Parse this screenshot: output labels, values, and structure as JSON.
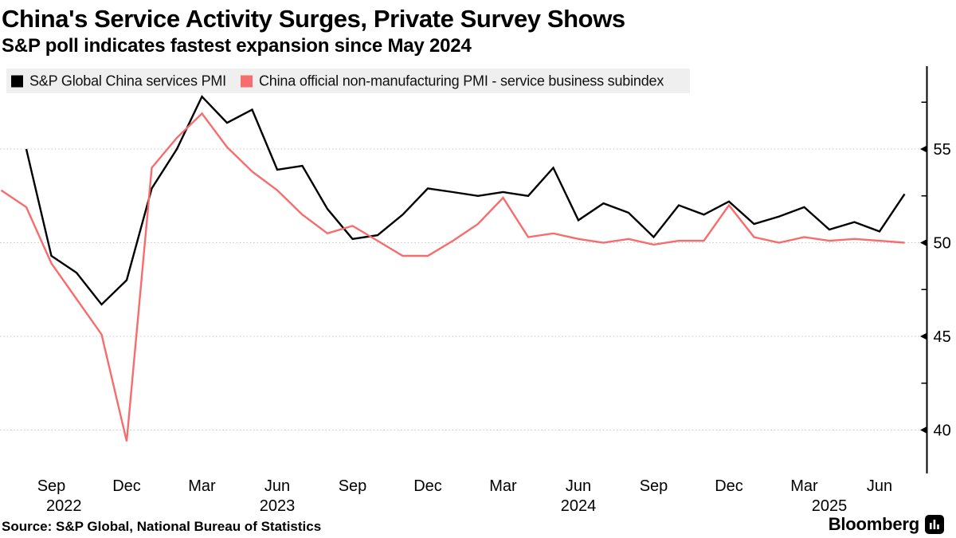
{
  "header": {
    "title": "China's Service Activity Surges, Private Survey Shows",
    "subtitle": "S&P poll indicates fastest expansion since May 2024"
  },
  "legend": [
    {
      "label": "S&P Global China services PMI",
      "color": "#000000"
    },
    {
      "label": "China official non-manufacturing PMI - service business subindex",
      "color": "#f76c6c"
    }
  ],
  "footer": {
    "source": "Source: S&P Global, National Bureau of Statistics",
    "brand": "Bloomberg",
    "brand_icon": "bar-chart-badge"
  },
  "chart_data": {
    "type": "line",
    "title": "China's Service Activity Surges, Private Survey Shows",
    "subtitle": "S&P poll indicates fastest expansion since May 2024",
    "x_unit": "month",
    "x_months": [
      "Jul 2022",
      "Aug 2022",
      "Sep 2022",
      "Oct 2022",
      "Nov 2022",
      "Dec 2022",
      "Jan 2023",
      "Feb 2023",
      "Mar 2023",
      "Apr 2023",
      "May 2023",
      "Jun 2023",
      "Jul 2023",
      "Aug 2023",
      "Sep 2023",
      "Oct 2023",
      "Nov 2023",
      "Dec 2023",
      "Jan 2024",
      "Feb 2024",
      "Mar 2024",
      "Apr 2024",
      "May 2024",
      "Jun 2024",
      "Jul 2024",
      "Aug 2024",
      "Sep 2024",
      "Oct 2024",
      "Nov 2024",
      "Dec 2024",
      "Jan 2025",
      "Feb 2025",
      "Mar 2025",
      "Apr 2025",
      "May 2025",
      "Jun 2025",
      "Jul 2025"
    ],
    "grid": "horizontal-dotted",
    "y_axis_side": "right",
    "ylim": [
      37.6,
      59.4
    ],
    "y_ticks": [
      55,
      50,
      45,
      40
    ],
    "y_minor_ticks": [
      57.5,
      52.5,
      47.5,
      42.5
    ],
    "x_ticks": [
      {
        "label": "Sep",
        "month_index": 2
      },
      {
        "label": "Dec",
        "month_index": 5
      },
      {
        "label": "Mar",
        "month_index": 8
      },
      {
        "label": "Jun",
        "month_index": 11
      },
      {
        "label": "Sep",
        "month_index": 14
      },
      {
        "label": "Dec",
        "month_index": 17
      },
      {
        "label": "Mar",
        "month_index": 20
      },
      {
        "label": "Jun",
        "month_index": 23
      },
      {
        "label": "Sep",
        "month_index": 26
      },
      {
        "label": "Dec",
        "month_index": 29
      },
      {
        "label": "Mar",
        "month_index": 32
      },
      {
        "label": "Jun",
        "month_index": 35
      }
    ],
    "year_labels": [
      {
        "label": "2022",
        "month_index": 2.5
      },
      {
        "label": "2023",
        "month_index": 11
      },
      {
        "label": "2024",
        "month_index": 23
      },
      {
        "label": "2025",
        "month_index": 33
      }
    ],
    "series": [
      {
        "name": "S&P Global China services PMI",
        "color": "#000000",
        "start": "Aug 2022",
        "start_month_index": 1,
        "values": [
          55.0,
          49.3,
          48.4,
          46.7,
          48.0,
          52.9,
          55.0,
          57.8,
          56.4,
          57.1,
          53.9,
          54.1,
          51.8,
          50.2,
          50.4,
          51.5,
          52.9,
          52.7,
          52.5,
          52.7,
          52.5,
          54.0,
          51.2,
          52.1,
          51.6,
          50.3,
          52.0,
          51.5,
          52.2,
          51.0,
          51.4,
          51.9,
          50.7,
          51.1,
          50.6,
          52.6
        ]
      },
      {
        "name": "China official non-manufacturing PMI - service business subindex",
        "color": "#f76c6c",
        "start": "Jul 2022",
        "start_month_index": 0,
        "values": [
          52.8,
          51.9,
          48.9,
          47.0,
          45.1,
          39.4,
          54.0,
          55.6,
          56.9,
          55.1,
          53.8,
          52.8,
          51.5,
          50.5,
          50.9,
          50.1,
          49.3,
          49.3,
          50.1,
          51.0,
          52.4,
          50.3,
          50.5,
          50.2,
          50.0,
          50.2,
          49.9,
          50.1,
          50.1,
          52.0,
          50.3,
          50.0,
          50.3,
          50.1,
          50.2,
          50.1,
          50.0
        ]
      }
    ]
  }
}
